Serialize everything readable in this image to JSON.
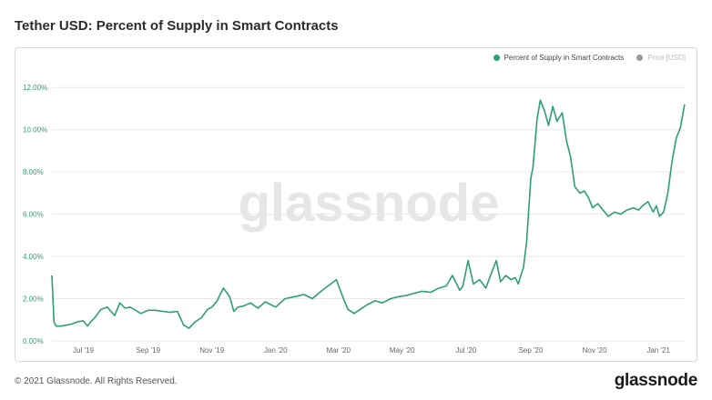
{
  "title": "Tether USD: Percent of Supply in Smart Contracts",
  "legend": {
    "series_label": "Percent of Supply in Smart Contracts",
    "price_label": "Price [USD]"
  },
  "watermark": "glassnode",
  "footer": {
    "copyright": "© 2021 Glassnode. All Rights Reserved.",
    "logo": "glassnode"
  },
  "colors": {
    "series": "#2e9e76",
    "price": "#9a9a9a",
    "grid": "#e8e8e8",
    "watermark": "#e6e6e6"
  },
  "chart_data": {
    "type": "line",
    "title": "Tether USD: Percent of Supply in Smart Contracts",
    "xlabel": "",
    "ylabel": "",
    "ylim": [
      0,
      13
    ],
    "y_ticks": [
      0,
      2,
      4,
      6,
      8,
      10,
      12
    ],
    "y_tick_labels": [
      "0.00%",
      "2.00%",
      "4.00%",
      "6.00%",
      "8.00%",
      "10.00%",
      "12.00%"
    ],
    "x_ticks": [
      "2019-07-01",
      "2019-09-01",
      "2019-11-01",
      "2020-01-01",
      "2020-03-01",
      "2020-05-01",
      "2020-07-01",
      "2020-09-01",
      "2020-11-01",
      "2021-01-01"
    ],
    "x_tick_labels": [
      "Jul '19",
      "Sep '19",
      "Nov '19",
      "Jan '20",
      "Mar '20",
      "May '20",
      "Jul '20",
      "Sep '20",
      "Nov '20",
      "Jan '21"
    ],
    "xlim": [
      "2019-06-01",
      "2021-01-27"
    ],
    "grid": true,
    "legend_position": "top-right",
    "series": [
      {
        "name": "Percent of Supply in Smart Contracts",
        "x": [
          "2019-06-01",
          "2019-06-03",
          "2019-06-05",
          "2019-06-10",
          "2019-06-15",
          "2019-06-20",
          "2019-06-25",
          "2019-07-01",
          "2019-07-05",
          "2019-07-08",
          "2019-07-12",
          "2019-07-18",
          "2019-07-24",
          "2019-07-31",
          "2019-08-05",
          "2019-08-10",
          "2019-08-15",
          "2019-08-20",
          "2019-08-25",
          "2019-09-01",
          "2019-09-08",
          "2019-09-15",
          "2019-09-22",
          "2019-09-29",
          "2019-10-05",
          "2019-10-10",
          "2019-10-16",
          "2019-10-22",
          "2019-10-28",
          "2019-11-01",
          "2019-11-06",
          "2019-11-12",
          "2019-11-18",
          "2019-11-22",
          "2019-11-26",
          "2019-12-01",
          "2019-12-08",
          "2019-12-15",
          "2019-12-22",
          "2020-01-01",
          "2020-01-10",
          "2020-01-20",
          "2020-01-28",
          "2020-02-05",
          "2020-02-12",
          "2020-02-20",
          "2020-02-28",
          "2020-03-05",
          "2020-03-10",
          "2020-03-16",
          "2020-03-22",
          "2020-03-28",
          "2020-04-05",
          "2020-04-12",
          "2020-04-20",
          "2020-04-28",
          "2020-05-05",
          "2020-05-12",
          "2020-05-20",
          "2020-05-28",
          "2020-06-05",
          "2020-06-12",
          "2020-06-18",
          "2020-06-25",
          "2020-06-28",
          "2020-07-03",
          "2020-07-08",
          "2020-07-14",
          "2020-07-20",
          "2020-07-26",
          "2020-07-30",
          "2020-08-03",
          "2020-08-08",
          "2020-08-13",
          "2020-08-17",
          "2020-08-20",
          "2020-08-25",
          "2020-08-28",
          "2020-09-01",
          "2020-09-03",
          "2020-09-07",
          "2020-09-10",
          "2020-09-14",
          "2020-09-18",
          "2020-09-22",
          "2020-09-26",
          "2020-10-01",
          "2020-10-05",
          "2020-10-09",
          "2020-10-13",
          "2020-10-18",
          "2020-10-22",
          "2020-10-26",
          "2020-10-30",
          "2020-11-04",
          "2020-11-09",
          "2020-11-14",
          "2020-11-20",
          "2020-11-26",
          "2020-12-02",
          "2020-12-08",
          "2020-12-13",
          "2020-12-17",
          "2020-12-22",
          "2020-12-27",
          "2020-12-30",
          "2021-01-02",
          "2021-01-06",
          "2021-01-10",
          "2021-01-14",
          "2021-01-18",
          "2021-01-22",
          "2021-01-26"
        ],
        "values": [
          3.1,
          0.9,
          0.7,
          0.7,
          0.75,
          0.8,
          0.9,
          0.95,
          0.7,
          0.9,
          1.1,
          1.5,
          1.6,
          1.2,
          1.8,
          1.55,
          1.6,
          1.45,
          1.3,
          1.45,
          1.45,
          1.4,
          1.35,
          1.4,
          0.75,
          0.6,
          0.9,
          1.1,
          1.5,
          1.6,
          1.9,
          2.5,
          2.1,
          1.4,
          1.6,
          1.65,
          1.8,
          1.55,
          1.85,
          1.6,
          2.0,
          2.1,
          2.2,
          2.0,
          2.3,
          2.6,
          2.9,
          2.1,
          1.5,
          1.3,
          1.5,
          1.7,
          1.9,
          1.8,
          2.0,
          2.1,
          2.15,
          2.25,
          2.35,
          2.3,
          2.5,
          2.6,
          3.1,
          2.4,
          2.6,
          3.8,
          2.7,
          2.9,
          2.5,
          3.3,
          3.8,
          2.8,
          3.1,
          2.9,
          3.0,
          2.7,
          3.5,
          4.7,
          7.7,
          8.2,
          10.5,
          11.4,
          10.9,
          10.2,
          11.1,
          10.4,
          10.8,
          9.5,
          8.7,
          7.3,
          7.0,
          7.1,
          6.8,
          6.3,
          6.5,
          6.2,
          5.9,
          6.1,
          6.0,
          6.2,
          6.3,
          6.2,
          6.4,
          6.6,
          6.1,
          6.4,
          5.9,
          6.1,
          7.0,
          8.5,
          9.6,
          10.1,
          11.2
        ]
      }
    ]
  }
}
